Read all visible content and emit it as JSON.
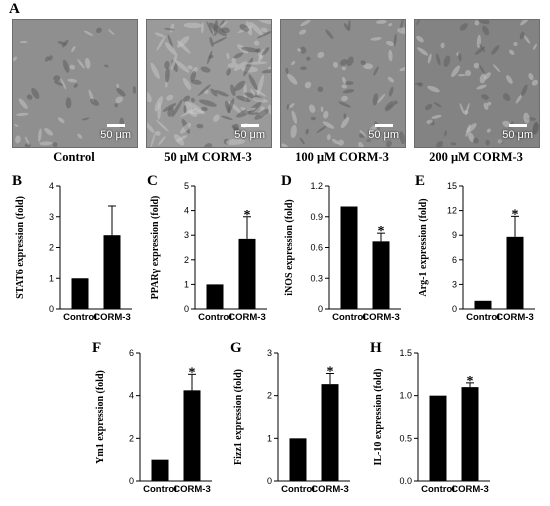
{
  "figure": {
    "panel_a": {
      "letter": "A",
      "images": [
        {
          "label": "Control",
          "scale": "50 μm",
          "tone": "#8f8f8f",
          "density": "sparse"
        },
        {
          "label": "50 μM CORM-3",
          "scale": "50 μm",
          "tone": "#9a9a9a",
          "density": "dense"
        },
        {
          "label": "100 μM CORM-3",
          "scale": "50 μm",
          "tone": "#8c8c8c",
          "density": "medium"
        },
        {
          "label": "200 μM CORM-3",
          "scale": "50 μm",
          "tone": "#838383",
          "density": "medium"
        }
      ]
    },
    "bar_color": "#000000"
  },
  "chart_data": [
    {
      "letter": "B",
      "type": "bar",
      "ylabel": "STAT6 expression (fold)",
      "categories": [
        "Control",
        "CORM-3"
      ],
      "values": [
        1.0,
        2.4
      ],
      "errors": [
        0,
        0.95
      ],
      "significant": [
        false,
        false
      ],
      "ylim": [
        0,
        4
      ],
      "yticks": [
        "0",
        "1",
        "2",
        "3",
        "4"
      ]
    },
    {
      "letter": "C",
      "type": "bar",
      "ylabel": "PPARγ expression (fold)",
      "categories": [
        "Control",
        "CORM-3"
      ],
      "values": [
        1.0,
        2.85
      ],
      "errors": [
        0,
        0.9
      ],
      "significant": [
        false,
        true
      ],
      "ylim": [
        0,
        5
      ],
      "yticks": [
        "0",
        "1",
        "2",
        "3",
        "4",
        "5"
      ]
    },
    {
      "letter": "D",
      "type": "bar",
      "ylabel": "iNOS expression (fold)",
      "categories": [
        "Control",
        "CORM-3"
      ],
      "values": [
        1.0,
        0.66
      ],
      "errors": [
        0,
        0.08
      ],
      "significant": [
        false,
        true
      ],
      "ylim": [
        0,
        1.2
      ],
      "yticks": [
        "0",
        "0.3",
        "0.6",
        "0.9",
        "1.2"
      ]
    },
    {
      "letter": "E",
      "type": "bar",
      "ylabel": "Arg-1 expression (fold)",
      "categories": [
        "Control",
        "CORM-3"
      ],
      "values": [
        1.0,
        8.8
      ],
      "errors": [
        0,
        2.5
      ],
      "significant": [
        false,
        true
      ],
      "ylim": [
        0,
        15
      ],
      "yticks": [
        "0",
        "3",
        "6",
        "9",
        "12",
        "15"
      ]
    },
    {
      "letter": "F",
      "type": "bar",
      "ylabel": "Ym1 expression (fold)",
      "categories": [
        "Control",
        "CORM-3"
      ],
      "values": [
        1.0,
        4.25
      ],
      "errors": [
        0,
        0.75
      ],
      "significant": [
        false,
        true
      ],
      "ylim": [
        0,
        6
      ],
      "yticks": [
        "0",
        "2",
        "4",
        "6"
      ]
    },
    {
      "letter": "G",
      "type": "bar",
      "ylabel": "Fizz1 expression (fold)",
      "categories": [
        "Control",
        "CORM-3"
      ],
      "values": [
        1.0,
        2.27
      ],
      "errors": [
        0,
        0.25
      ],
      "significant": [
        false,
        true
      ],
      "ylim": [
        0,
        3
      ],
      "yticks": [
        "0",
        "1",
        "2",
        "3"
      ]
    },
    {
      "letter": "H",
      "type": "bar",
      "ylabel": "IL-10 expression (fold)",
      "categories": [
        "Control",
        "CORM-3"
      ],
      "values": [
        1.0,
        1.1
      ],
      "errors": [
        0,
        0.05
      ],
      "significant": [
        false,
        true
      ],
      "ylim": [
        0,
        1.5
      ],
      "yticks": [
        "0.0",
        "0.5",
        "1.0",
        "1.5"
      ]
    }
  ]
}
